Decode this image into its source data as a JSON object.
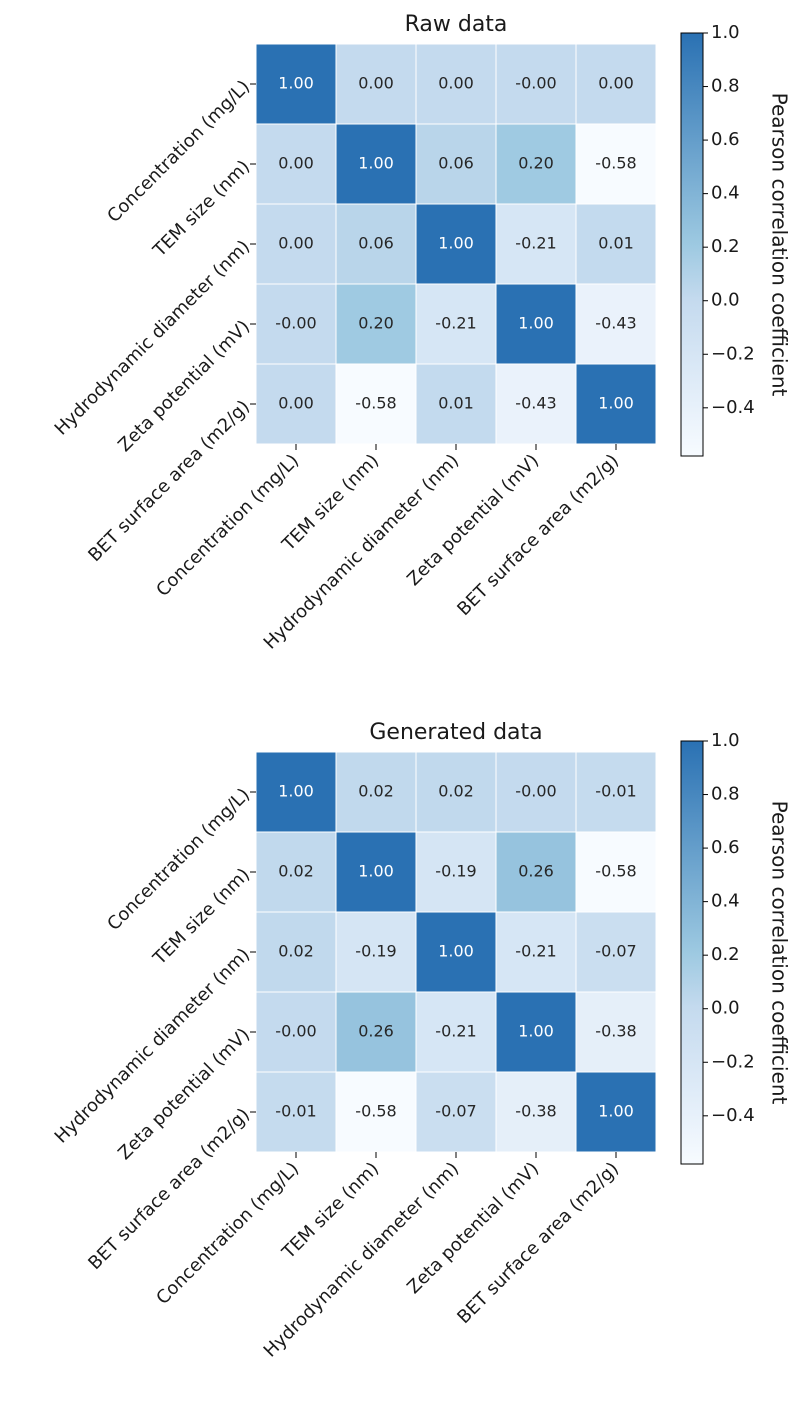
{
  "chart_data": [
    {
      "type": "heatmap",
      "title": "Raw data",
      "x_categories": [
        "Concentration (mg/L)",
        "TEM size (nm)",
        "Hydrodynamic diameter (nm)",
        "Zeta potential (mV)",
        "BET surface area (m2/g)"
      ],
      "y_categories": [
        "Concentration (mg/L)",
        "TEM size (nm)",
        "Hydrodynamic diameter (nm)",
        "Zeta potential (mV)",
        "BET surface area (m2/g)"
      ],
      "values": [
        [
          1.0,
          0.0,
          0.0,
          0,
          0.0
        ],
        [
          0.0,
          1.0,
          0.06,
          0.2,
          -0.58
        ],
        [
          0.0,
          0.06,
          1.0,
          -0.21,
          0.01
        ],
        [
          0,
          0.2,
          -0.21,
          1.0,
          -0.43
        ],
        [
          0.0,
          -0.58,
          0.01,
          -0.43,
          1.0
        ]
      ],
      "value_labels": [
        [
          "1.00",
          "0.00",
          "0.00",
          "-0.00",
          "0.00"
        ],
        [
          "0.00",
          "1.00",
          "0.06",
          "0.20",
          "-0.58"
        ],
        [
          "0.00",
          "0.06",
          "1.00",
          "-0.21",
          "0.01"
        ],
        [
          "-0.00",
          "0.20",
          "-0.21",
          "1.00",
          "-0.43"
        ],
        [
          "0.00",
          "-0.58",
          "0.01",
          "-0.43",
          "1.00"
        ]
      ],
      "colormap": "Blues",
      "clim": [
        -0.58,
        1.0
      ],
      "colorbar_label": "Pearson correlation coefficient",
      "colorbar_ticks": [
        {
          "value": 1.0,
          "label": "1.0"
        },
        {
          "value": 0.8,
          "label": "0.8"
        },
        {
          "value": 0.6,
          "label": "0.6"
        },
        {
          "value": 0.4,
          "label": "0.4"
        },
        {
          "value": 0.2,
          "label": "0.2"
        },
        {
          "value": 0.0,
          "label": "0.0"
        },
        {
          "value": -0.2,
          "label": "−0.2"
        },
        {
          "value": -0.4,
          "label": "−0.4"
        }
      ]
    },
    {
      "type": "heatmap",
      "title": "Generated data",
      "x_categories": [
        "Concentration (mg/L)",
        "TEM size (nm)",
        "Hydrodynamic diameter (nm)",
        "Zeta potential (mV)",
        "BET surface area (m2/g)"
      ],
      "y_categories": [
        "Concentration (mg/L)",
        "TEM size (nm)",
        "Hydrodynamic diameter (nm)",
        "Zeta potential (mV)",
        "BET surface area (m2/g)"
      ],
      "values": [
        [
          1.0,
          0.02,
          0.02,
          0,
          -0.01
        ],
        [
          0.02,
          1.0,
          -0.19,
          0.26,
          -0.58
        ],
        [
          0.02,
          -0.19,
          1.0,
          -0.21,
          -0.07
        ],
        [
          0,
          0.26,
          -0.21,
          1.0,
          -0.38
        ],
        [
          -0.01,
          -0.58,
          -0.07,
          -0.38,
          1.0
        ]
      ],
      "value_labels": [
        [
          "1.00",
          "0.02",
          "0.02",
          "-0.00",
          "-0.01"
        ],
        [
          "0.02",
          "1.00",
          "-0.19",
          "0.26",
          "-0.58"
        ],
        [
          "0.02",
          "-0.19",
          "1.00",
          "-0.21",
          "-0.07"
        ],
        [
          "-0.00",
          "0.26",
          "-0.21",
          "1.00",
          "-0.38"
        ],
        [
          "-0.01",
          "-0.58",
          "-0.07",
          "-0.38",
          "1.00"
        ]
      ],
      "colormap": "Blues",
      "clim": [
        -0.58,
        1.0
      ],
      "colorbar_label": "Pearson correlation coefficient",
      "colorbar_ticks": [
        {
          "value": 1.0,
          "label": "1.0"
        },
        {
          "value": 0.8,
          "label": "0.8"
        },
        {
          "value": 0.6,
          "label": "0.6"
        },
        {
          "value": 0.4,
          "label": "0.4"
        },
        {
          "value": 0.2,
          "label": "0.2"
        },
        {
          "value": 0.0,
          "label": "0.0"
        },
        {
          "value": -0.2,
          "label": "−0.2"
        },
        {
          "value": -0.4,
          "label": "−0.4"
        }
      ]
    }
  ]
}
